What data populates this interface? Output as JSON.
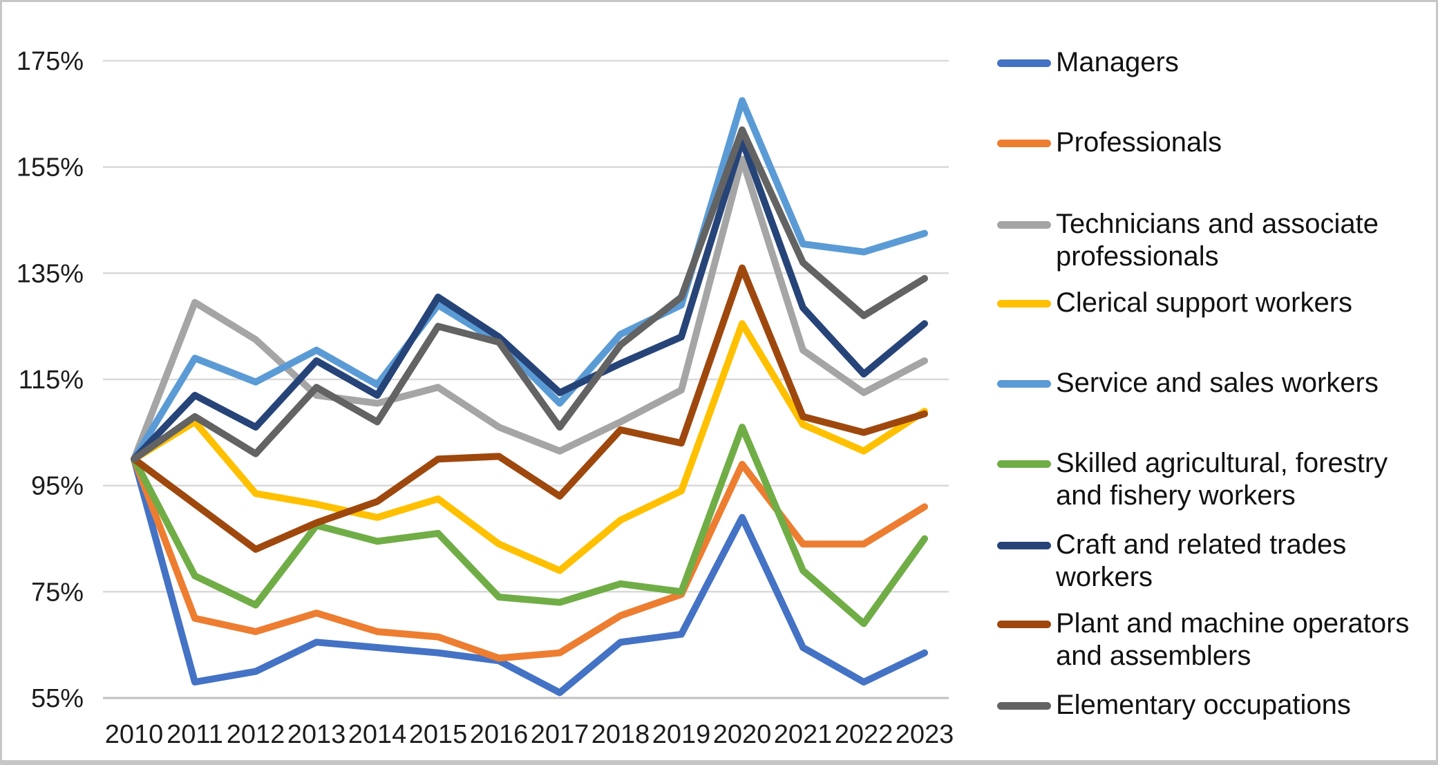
{
  "chart_data": {
    "type": "line",
    "title": "",
    "xlabel": "",
    "ylabel": "",
    "ylim": [
      55,
      175
    ],
    "grid": true,
    "legend_position": "right",
    "gridline_color": "#d9d9d9",
    "axis_line_color": "#bfbfbf",
    "background_color": "#ffffff",
    "yticks": [
      "175%",
      "155%",
      "135%",
      "115%",
      "95%",
      "75%",
      "55%"
    ],
    "categories": [
      "2010",
      "2011",
      "2012",
      "2013",
      "2014",
      "2015",
      "2016",
      "2017",
      "2018",
      "2019",
      "2020",
      "2021",
      "2022",
      "2023"
    ],
    "y_unit": "%",
    "series": [
      {
        "name": "Managers",
        "color": "#4472C4",
        "values": [
          100,
          58,
          60,
          65.5,
          64.5,
          63.5,
          62,
          56,
          65.5,
          67,
          89,
          64.5,
          58,
          63.5
        ]
      },
      {
        "name": "Professionals",
        "color": "#ED7D31",
        "values": [
          100,
          70,
          67.5,
          71,
          67.5,
          66.5,
          62.5,
          63.5,
          70.5,
          74.5,
          99,
          84,
          84,
          91
        ]
      },
      {
        "name": "Technicians and associate professionals",
        "color": "#A5A5A5",
        "values": [
          100,
          129.5,
          122.5,
          112,
          110.5,
          113.5,
          106,
          101.5,
          107,
          113,
          156.5,
          120.5,
          112.5,
          118.5
        ]
      },
      {
        "name": "Clerical support workers",
        "color": "#FFC000",
        "values": [
          100,
          107,
          93.5,
          91.5,
          89,
          92.5,
          84,
          79,
          88.5,
          94,
          125.5,
          106.5,
          101.5,
          109
        ]
      },
      {
        "name": "Service and sales workers",
        "color": "#5B9BD5",
        "values": [
          100,
          119,
          114.5,
          120.5,
          114,
          129,
          122,
          110.5,
          123.5,
          129,
          167.5,
          140.5,
          139,
          142.5
        ]
      },
      {
        "name": "Skilled agricultural, forestry and fishery workers",
        "color": "#70AD47",
        "values": [
          100,
          78,
          72.5,
          87.5,
          84.5,
          86,
          74,
          73,
          76.5,
          75,
          106,
          79,
          69,
          85
        ]
      },
      {
        "name": "Craft and related trades workers",
        "color": "#264478",
        "values": [
          100,
          112,
          106,
          118.5,
          112,
          130.5,
          123,
          112.5,
          118,
          123,
          160,
          128.5,
          116,
          125.5
        ]
      },
      {
        "name": "Plant and machine operators and assemblers",
        "color": "#9E480E",
        "values": [
          100,
          91.5,
          83,
          88,
          92,
          100,
          100.5,
          93,
          105.5,
          103,
          136,
          108,
          105,
          108.5
        ]
      },
      {
        "name": "Elementary occupations",
        "color": "#636363",
        "values": [
          100,
          108,
          101,
          113.5,
          107,
          125,
          122,
          106,
          121.5,
          130.5,
          162,
          137,
          127,
          134
        ]
      }
    ]
  }
}
